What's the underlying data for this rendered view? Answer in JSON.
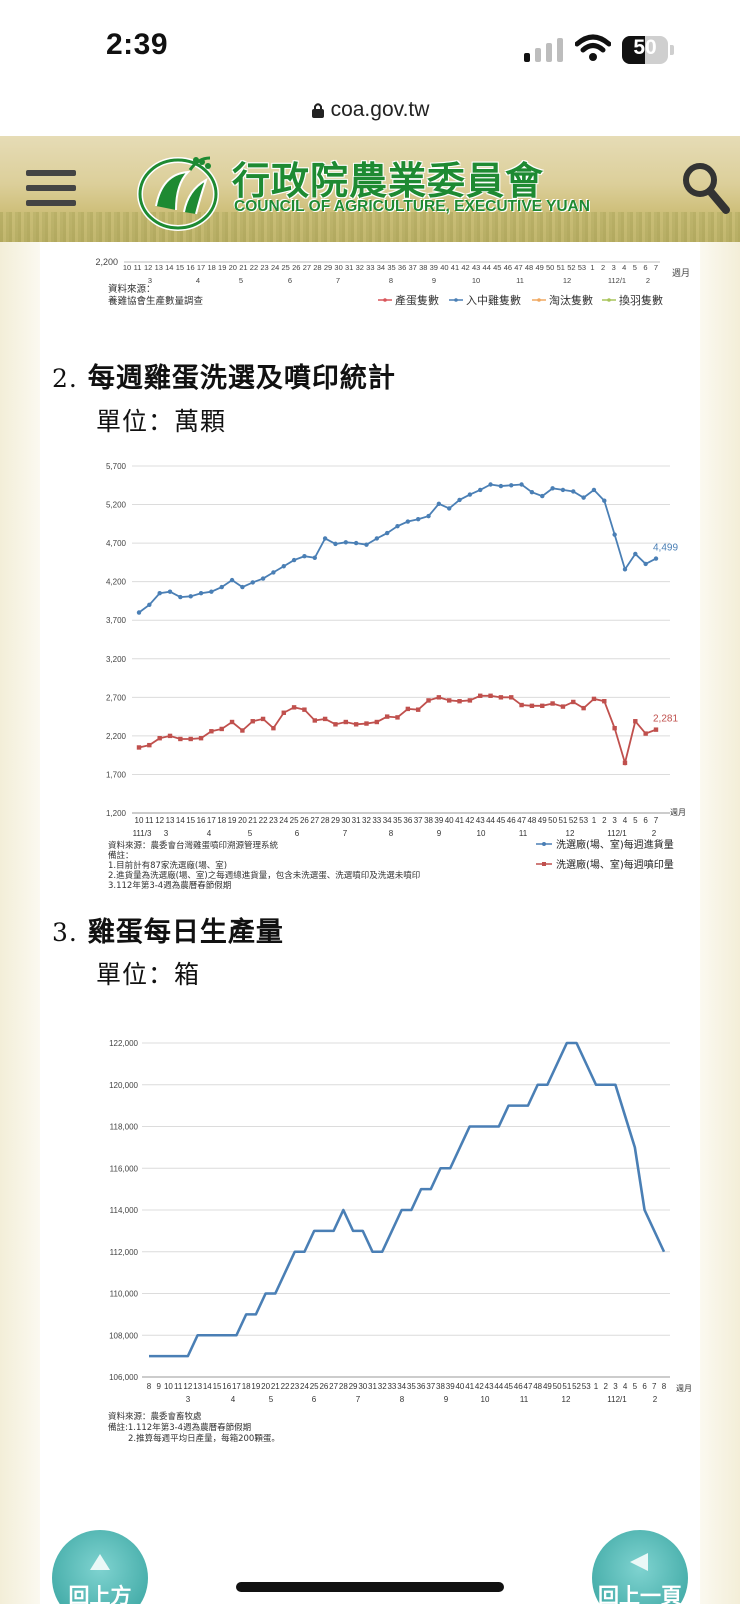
{
  "status_bar": {
    "time": "2:39",
    "battery": "50",
    "battery_level": 0.5
  },
  "browser": {
    "url": "coa.gov.tw"
  },
  "site": {
    "title_zh": "行政院農業委員會",
    "title_en": "COUNCIL OF AGRICULTURE, EXECUTIVE YUAN",
    "menu_icon": "hamburger-menu-icon",
    "search_icon": "search-icon"
  },
  "sections": [
    {
      "num": "2.",
      "title": "每週雞蛋洗選及噴印統計",
      "unit": "單位：萬顆"
    },
    {
      "num": "3.",
      "title": "雞蛋每日生產量",
      "unit": "單位：箱"
    }
  ],
  "buttons": {
    "back_to_top": "回上方",
    "back_page": "回上一頁"
  },
  "chart_data": [
    {
      "type": "line",
      "partial": true,
      "ymin_label": "2,200",
      "x_week_labels": [
        "10",
        "11",
        "12",
        "13",
        "14",
        "15",
        "16",
        "17",
        "18",
        "19",
        "20",
        "21",
        "22",
        "23",
        "24",
        "25",
        "26",
        "27",
        "28",
        "29",
        "30",
        "31",
        "32",
        "33",
        "34",
        "35",
        "36",
        "37",
        "38",
        "39",
        "40",
        "41",
        "42",
        "43",
        "44",
        "45",
        "46",
        "47",
        "48",
        "49",
        "50",
        "51",
        "52",
        "53",
        "1",
        "2",
        "3",
        "4",
        "5",
        "6",
        "7"
      ],
      "month_labels": [
        "3",
        "4",
        "5",
        "6",
        "7",
        "8",
        "9",
        "10",
        "11",
        "12",
        "112/1",
        "2"
      ],
      "axis_unit": "週月",
      "source_line1": "資料來源：",
      "source_line2": "養雞協會生產數量調查",
      "legend": [
        {
          "name": "產蛋隻數",
          "color": "#d9555a"
        },
        {
          "name": "入中雞隻數",
          "color": "#4a7fb5"
        },
        {
          "name": "淘汰隻數",
          "color": "#f0a860"
        },
        {
          "name": "換羽隻數",
          "color": "#a8c45a"
        }
      ]
    },
    {
      "type": "line",
      "ylim": [
        1200,
        5700
      ],
      "yticks": [
        "1,200",
        "1,700",
        "2,200",
        "2,700",
        "3,200",
        "3,700",
        "4,200",
        "4,700",
        "5,200",
        "5,700"
      ],
      "x_week_labels": [
        "10",
        "11",
        "12",
        "13",
        "14",
        "15",
        "16",
        "17",
        "18",
        "19",
        "20",
        "21",
        "22",
        "23",
        "24",
        "25",
        "26",
        "27",
        "28",
        "29",
        "30",
        "31",
        "32",
        "33",
        "34",
        "35",
        "36",
        "37",
        "38",
        "39",
        "40",
        "41",
        "42",
        "43",
        "44",
        "45",
        "46",
        "47",
        "48",
        "49",
        "50",
        "51",
        "52",
        "53",
        "1",
        "2",
        "3",
        "4",
        "5",
        "6",
        "7"
      ],
      "month_labels": [
        "111/3",
        "3",
        "4",
        "5",
        "6",
        "7",
        "8",
        "9",
        "10",
        "11",
        "12",
        "112/1",
        "2"
      ],
      "axis_unit": "週月",
      "series": [
        {
          "name": "洗選廠(場、室)每週進貨量",
          "color": "#4a7fb5",
          "last_label": "4,499",
          "values": [
            3800,
            3900,
            4050,
            4070,
            4000,
            4010,
            4050,
            4070,
            4130,
            4220,
            4130,
            4190,
            4240,
            4320,
            4400,
            4480,
            4530,
            4510,
            4760,
            4690,
            4710,
            4700,
            4680,
            4760,
            4830,
            4920,
            4980,
            5010,
            5050,
            5210,
            5150,
            5260,
            5330,
            5390,
            5460,
            5440,
            5450,
            5460,
            5360,
            5310,
            5410,
            5390,
            5370,
            5290,
            5390,
            5250,
            4810,
            4360,
            4560,
            4430,
            4499
          ]
        },
        {
          "name": "洗選廠(場、室)每週噴印量",
          "color": "#c0504d",
          "last_label": "2,281",
          "values": [
            2050,
            2080,
            2170,
            2200,
            2160,
            2160,
            2170,
            2260,
            2290,
            2380,
            2270,
            2390,
            2420,
            2300,
            2500,
            2570,
            2540,
            2400,
            2420,
            2350,
            2380,
            2350,
            2360,
            2380,
            2450,
            2440,
            2550,
            2540,
            2660,
            2700,
            2660,
            2650,
            2660,
            2720,
            2720,
            2700,
            2700,
            2600,
            2590,
            2590,
            2620,
            2580,
            2640,
            2560,
            2680,
            2650,
            2300,
            1850,
            2390,
            2230,
            2281
          ]
        }
      ],
      "source_line1": "資料來源：農委會台灣雞蛋噴印溯源管理系統",
      "notes": [
        "備註：",
        "1.目前計有87家洗選廠(場、室)",
        "2.進貨量為洗選廠(場、室)之每週總進貨量，包含未洗選蛋、洗選噴印及洗選未噴印",
        "3.112年第3-4週為農曆春節假期"
      ]
    },
    {
      "type": "line",
      "ylim": [
        106000,
        122000
      ],
      "yticks": [
        "106,000",
        "108,000",
        "110,000",
        "112,000",
        "114,000",
        "116,000",
        "118,000",
        "120,000",
        "122,000"
      ],
      "x_week_labels": [
        "8",
        "9",
        "10",
        "11",
        "12",
        "13",
        "14",
        "15",
        "16",
        "17",
        "18",
        "19",
        "20",
        "21",
        "22",
        "23",
        "24",
        "25",
        "26",
        "27",
        "28",
        "29",
        "30",
        "31",
        "32",
        "33",
        "34",
        "35",
        "36",
        "37",
        "38",
        "39",
        "40",
        "41",
        "42",
        "43",
        "44",
        "45",
        "46",
        "47",
        "48",
        "49",
        "50",
        "51",
        "52",
        "53",
        "1",
        "2",
        "3",
        "4",
        "5",
        "6",
        "7",
        "8"
      ],
      "month_labels": [
        "3",
        "4",
        "5",
        "6",
        "7",
        "8",
        "9",
        "10",
        "11",
        "12",
        "112/1",
        "2"
      ],
      "axis_unit": "週月",
      "series": [
        {
          "name": "雞蛋每日生產量",
          "color": "#4a7fb5",
          "values": [
            107000,
            107000,
            107000,
            107000,
            107000,
            108000,
            108000,
            108000,
            108000,
            108000,
            109000,
            109000,
            110000,
            110000,
            111000,
            112000,
            112000,
            113000,
            113000,
            113000,
            114000,
            113000,
            113000,
            112000,
            112000,
            113000,
            114000,
            114000,
            115000,
            115000,
            116000,
            116000,
            117000,
            118000,
            118000,
            118000,
            118000,
            119000,
            119000,
            119000,
            120000,
            120000,
            121000,
            122000,
            122000,
            121000,
            120000,
            120000,
            120000,
            118500,
            117000,
            114000,
            113000,
            112000
          ]
        }
      ],
      "source_line1": "資料來源：農委會畜牧處",
      "notes": [
        "備註:1.112年第3-4週為農曆春節假期",
        "2.推算每週平均日產量，每箱200顆蛋。"
      ]
    }
  ]
}
